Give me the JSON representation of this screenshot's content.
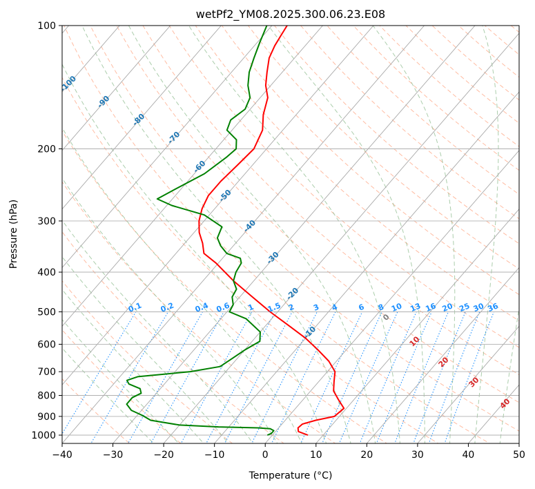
{
  "chart_data": {
    "type": "line",
    "chart_kind": "Skew-T log-P diagram",
    "title": "wetPf2_YM08.2025.300.06.23.E08",
    "xlabel": "Temperature (°C)",
    "ylabel": "Pressure (hPa)",
    "xlim": [
      -40,
      50
    ],
    "ylim": [
      1050,
      100
    ],
    "x_ticks": [
      -40,
      -30,
      -20,
      -10,
      0,
      10,
      20,
      30,
      40,
      50
    ],
    "y_ticks": [
      100,
      200,
      300,
      400,
      500,
      600,
      700,
      800,
      900,
      1000
    ],
    "grid": true,
    "series": [
      {
        "name": "temperature",
        "color": "#ff0000",
        "points": [
          {
            "p": 1000,
            "t": 7.0
          },
          {
            "p": 980,
            "t": 4.5
          },
          {
            "p": 960,
            "t": 3.8
          },
          {
            "p": 940,
            "t": 4.0
          },
          {
            "p": 920,
            "t": 6.0
          },
          {
            "p": 900,
            "t": 9.0
          },
          {
            "p": 860,
            "t": 9.5
          },
          {
            "p": 820,
            "t": 7.0
          },
          {
            "p": 780,
            "t": 4.5
          },
          {
            "p": 740,
            "t": 3.0
          },
          {
            "p": 700,
            "t": 1.5
          },
          {
            "p": 660,
            "t": -1.5
          },
          {
            "p": 620,
            "t": -5.5
          },
          {
            "p": 580,
            "t": -10.0
          },
          {
            "p": 540,
            "t": -15.5
          },
          {
            "p": 500,
            "t": -21.5
          },
          {
            "p": 460,
            "t": -27.5
          },
          {
            "p": 420,
            "t": -34.0
          },
          {
            "p": 380,
            "t": -40.5
          },
          {
            "p": 360,
            "t": -44.5
          },
          {
            "p": 340,
            "t": -46.5
          },
          {
            "p": 320,
            "t": -49.0
          },
          {
            "p": 300,
            "t": -51.0
          },
          {
            "p": 280,
            "t": -52.5
          },
          {
            "p": 260,
            "t": -53.5
          },
          {
            "p": 240,
            "t": -53.5
          },
          {
            "p": 220,
            "t": -53.0
          },
          {
            "p": 200,
            "t": -52.5
          },
          {
            "p": 180,
            "t": -54.0
          },
          {
            "p": 165,
            "t": -56.5
          },
          {
            "p": 150,
            "t": -58.5
          },
          {
            "p": 140,
            "t": -61.0
          },
          {
            "p": 130,
            "t": -63.0
          },
          {
            "p": 120,
            "t": -65.0
          },
          {
            "p": 112,
            "t": -66.0
          },
          {
            "p": 106,
            "t": -66.5
          },
          {
            "p": 100,
            "t": -67.0
          }
        ]
      },
      {
        "name": "dewpoint",
        "color": "#008000",
        "points": [
          {
            "p": 1000,
            "t": -1.0
          },
          {
            "p": 990,
            "t": -0.5
          },
          {
            "p": 975,
            "t": -0.5
          },
          {
            "p": 965,
            "t": -1.5
          },
          {
            "p": 960,
            "t": -4.0
          },
          {
            "p": 955,
            "t": -12.0
          },
          {
            "p": 945,
            "t": -20.0
          },
          {
            "p": 920,
            "t": -26.5
          },
          {
            "p": 895,
            "t": -29.0
          },
          {
            "p": 870,
            "t": -32.0
          },
          {
            "p": 840,
            "t": -34.0
          },
          {
            "p": 810,
            "t": -34.0
          },
          {
            "p": 790,
            "t": -33.0
          },
          {
            "p": 770,
            "t": -34.0
          },
          {
            "p": 750,
            "t": -37.0
          },
          {
            "p": 735,
            "t": -38.0
          },
          {
            "p": 720,
            "t": -36.5
          },
          {
            "p": 700,
            "t": -27.0
          },
          {
            "p": 680,
            "t": -22.0
          },
          {
            "p": 650,
            "t": -21.0
          },
          {
            "p": 620,
            "t": -20.0
          },
          {
            "p": 590,
            "t": -18.5
          },
          {
            "p": 560,
            "t": -20.0
          },
          {
            "p": 520,
            "t": -25.0
          },
          {
            "p": 500,
            "t": -29.5
          },
          {
            "p": 480,
            "t": -30.0
          },
          {
            "p": 460,
            "t": -31.5
          },
          {
            "p": 440,
            "t": -32.0
          },
          {
            "p": 420,
            "t": -34.0
          },
          {
            "p": 400,
            "t": -35.0
          },
          {
            "p": 380,
            "t": -35.5
          },
          {
            "p": 370,
            "t": -36.5
          },
          {
            "p": 360,
            "t": -40.0
          },
          {
            "p": 345,
            "t": -42.5
          },
          {
            "p": 330,
            "t": -44.5
          },
          {
            "p": 310,
            "t": -45.5
          },
          {
            "p": 290,
            "t": -51.0
          },
          {
            "p": 275,
            "t": -59.0
          },
          {
            "p": 265,
            "t": -63.0
          },
          {
            "p": 250,
            "t": -61.0
          },
          {
            "p": 230,
            "t": -58.0
          },
          {
            "p": 210,
            "t": -56.5
          },
          {
            "p": 200,
            "t": -56.0
          },
          {
            "p": 190,
            "t": -57.5
          },
          {
            "p": 180,
            "t": -61.0
          },
          {
            "p": 170,
            "t": -62.0
          },
          {
            "p": 160,
            "t": -61.0
          },
          {
            "p": 150,
            "t": -62.0
          },
          {
            "p": 140,
            "t": -64.5
          },
          {
            "p": 130,
            "t": -66.5
          },
          {
            "p": 120,
            "t": -68.0
          },
          {
            "p": 110,
            "t": -69.5
          },
          {
            "p": 100,
            "t": -71.0
          }
        ]
      }
    ],
    "isotherm_labels": [
      "-100",
      "-90",
      "-80",
      "-70",
      "-60",
      "-50",
      "-40",
      "-30",
      "-20",
      "-10"
    ],
    "mixing_ratio_labels": [
      "0.1",
      "0.2",
      "0.4",
      "0.6",
      "1",
      "1.5",
      "2",
      "3",
      "4",
      "6",
      "8",
      "10",
      "13",
      "16",
      "20",
      "25",
      "30",
      "36"
    ],
    "moist_adiabat_labels": [
      "0",
      "10",
      "20",
      "30",
      "40"
    ],
    "colors": {
      "temperature": "#ff0000",
      "dewpoint": "#008000",
      "isotherm": "#a9a9a9",
      "dry_adiabat": "#ffa07a",
      "moist_adiabat": "#8fbc8f",
      "mixing_ratio": "#1e90ff",
      "isotherm_label": "#1f77b4",
      "moist_label": "#d62728"
    }
  }
}
